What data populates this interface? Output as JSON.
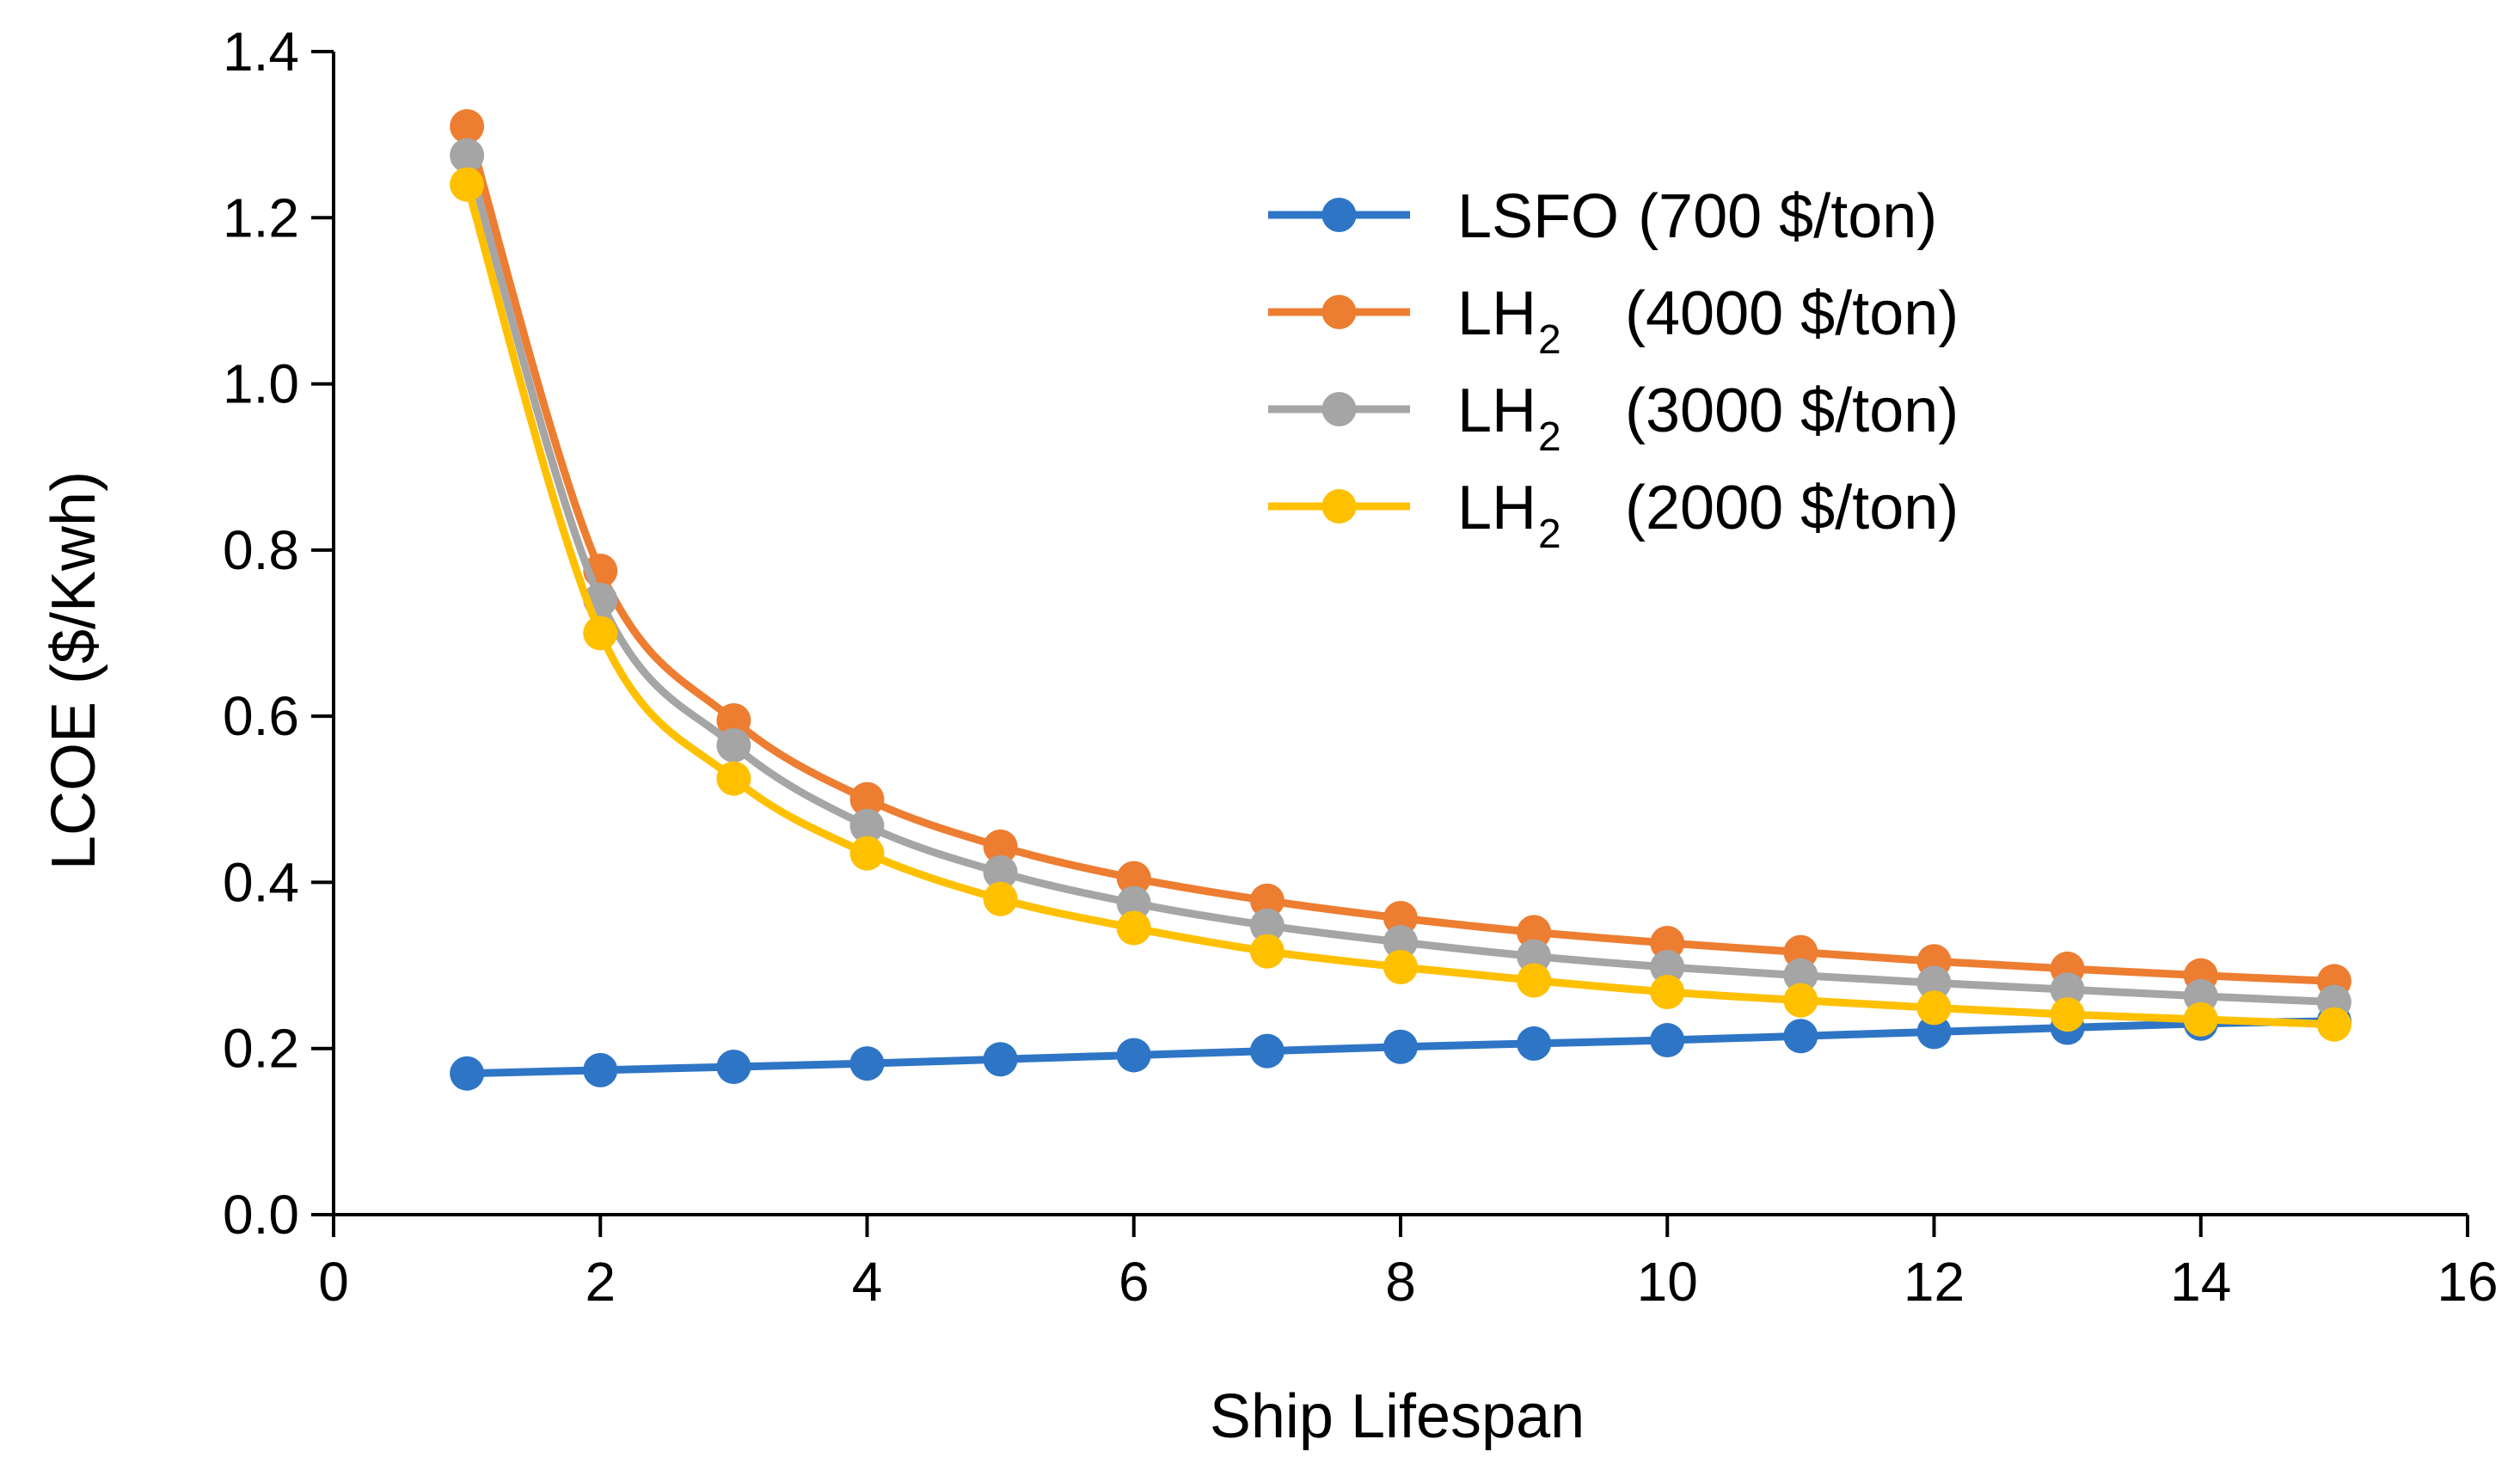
{
  "chart_data": {
    "type": "line",
    "title": "",
    "xlabel": "Ship Lifespan",
    "ylabel": "LCOE ($/Kwh)",
    "xlim": [
      0,
      16
    ],
    "ylim": [
      0.0,
      1.4
    ],
    "xticks": [
      0,
      2,
      4,
      6,
      8,
      10,
      12,
      14,
      16
    ],
    "yticks": [
      0.0,
      0.2,
      0.4,
      0.6,
      0.8,
      1.0,
      1.2,
      1.4
    ],
    "xtick_labels": [
      "0",
      "2",
      "4",
      "6",
      "8",
      "10",
      "12",
      "14",
      "16"
    ],
    "ytick_labels": [
      "0.0",
      "0.2",
      "0.4",
      "0.6",
      "0.8",
      "1.0",
      "1.2",
      "1.4"
    ],
    "grid": false,
    "legend_position": "top-right",
    "x": [
      1,
      2,
      3,
      4,
      5,
      6,
      7,
      8,
      9,
      10,
      11,
      12,
      13,
      14,
      15
    ],
    "series": [
      {
        "name": "LSFO (700 $/ton)",
        "legend_main": "LSFO",
        "legend_sub": "",
        "legend_price": "(700 $/ton)",
        "color": "#2E75C6",
        "values": [
          0.17,
          0.174,
          0.178,
          0.182,
          0.187,
          0.192,
          0.197,
          0.202,
          0.206,
          0.21,
          0.215,
          0.22,
          0.225,
          0.23,
          0.233
        ]
      },
      {
        "name": "LH2 (4000 $/ton)",
        "legend_main": "LH",
        "legend_sub": "2",
        "legend_price": "(4000 $/ton)",
        "color": "#ED7D31",
        "values": [
          1.31,
          0.775,
          0.595,
          0.5,
          0.443,
          0.405,
          0.378,
          0.357,
          0.34,
          0.327,
          0.316,
          0.305,
          0.296,
          0.288,
          0.281
        ]
      },
      {
        "name": "LH2 (3000 $/ton)",
        "legend_main": "LH",
        "legend_sub": "2",
        "legend_price": "(3000 $/ton)",
        "color": "#A5A5A5",
        "values": [
          1.275,
          0.74,
          0.565,
          0.468,
          0.412,
          0.375,
          0.348,
          0.328,
          0.311,
          0.298,
          0.288,
          0.279,
          0.271,
          0.263,
          0.256
        ]
      },
      {
        "name": "LH2 (2000 $/ton)",
        "legend_main": "LH",
        "legend_sub": "2",
        "legend_price": "(2000 $/ton)",
        "color": "#FFC000",
        "values": [
          1.24,
          0.7,
          0.525,
          0.435,
          0.38,
          0.345,
          0.317,
          0.298,
          0.282,
          0.268,
          0.258,
          0.249,
          0.241,
          0.235,
          0.229
        ]
      }
    ]
  }
}
